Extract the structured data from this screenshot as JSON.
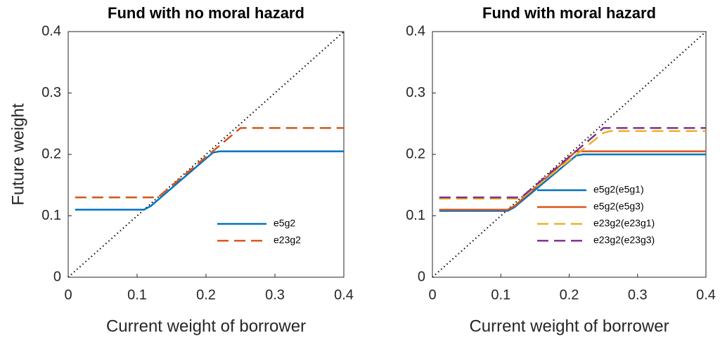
{
  "chart_data": [
    {
      "type": "line",
      "title": "Fund with no moral hazard",
      "xlabel": "Current weight of borrower",
      "ylabel": "Future weight",
      "xlim": [
        0,
        0.4
      ],
      "ylim": [
        0,
        0.4
      ],
      "xticks": [
        0,
        0.1,
        0.2,
        0.3,
        0.4
      ],
      "yticks": [
        0,
        0.1,
        0.2,
        0.3,
        0.4
      ],
      "legend": "lower right",
      "series": [
        {
          "name": "e5g2",
          "color": "#0072bd",
          "dashed": false,
          "x": [
            0.01,
            0.11,
            0.12,
            0.21,
            0.22,
            0.4
          ],
          "values": [
            0.11,
            0.11,
            0.116,
            0.203,
            0.205,
            0.205
          ]
        },
        {
          "name": "e23g2",
          "color": "#d95319",
          "dashed": true,
          "x": [
            0.01,
            0.13,
            0.25,
            0.4
          ],
          "values": [
            0.13,
            0.13,
            0.243,
            0.243
          ]
        }
      ]
    },
    {
      "type": "line",
      "title": "Fund with moral hazard",
      "xlabel": "Current weight of borrower",
      "xlim": [
        0,
        0.4
      ],
      "ylim": [
        0,
        0.4
      ],
      "xticks": [
        0,
        0.1,
        0.2,
        0.3,
        0.4
      ],
      "yticks": [
        0,
        0.1,
        0.2,
        0.3,
        0.4
      ],
      "legend": "lower right",
      "series": [
        {
          "name": "e5g2(e5g1)",
          "color": "#0072bd",
          "dashed": false,
          "x": [
            0.01,
            0.11,
            0.12,
            0.21,
            0.22,
            0.4
          ],
          "values": [
            0.108,
            0.108,
            0.114,
            0.198,
            0.2,
            0.2
          ]
        },
        {
          "name": "e5g2(e5g3)",
          "color": "#d95319",
          "dashed": false,
          "x": [
            0.01,
            0.11,
            0.12,
            0.21,
            0.4
          ],
          "values": [
            0.11,
            0.11,
            0.116,
            0.205,
            0.205
          ]
        },
        {
          "name": "e23g2(e23g1)",
          "color": "#edb120",
          "dashed": true,
          "x": [
            0.01,
            0.13,
            0.25,
            0.26,
            0.4
          ],
          "values": [
            0.128,
            0.128,
            0.235,
            0.238,
            0.238
          ]
        },
        {
          "name": "e23g2(e23g3)",
          "color": "#7e2f8e",
          "dashed": true,
          "x": [
            0.01,
            0.13,
            0.25,
            0.4
          ],
          "values": [
            0.13,
            0.13,
            0.243,
            0.243
          ]
        }
      ]
    }
  ]
}
